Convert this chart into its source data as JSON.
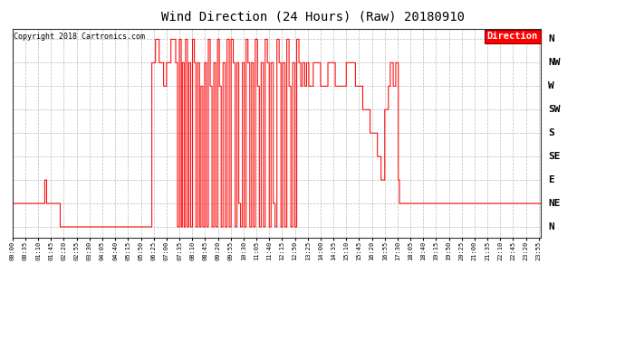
{
  "title": "Wind Direction (24 Hours) (Raw) 20180910",
  "copyright": "Copyright 2018 Cartronics.com",
  "legend_label": "Direction",
  "line_color": "#FF0000",
  "background_color": "#FFFFFF",
  "grid_color": "#AAAAAA",
  "y_labels": [
    "N",
    "NE",
    "E",
    "SE",
    "S",
    "SW",
    "W",
    "NW",
    "N"
  ],
  "y_values": [
    0,
    45,
    90,
    135,
    180,
    225,
    270,
    315,
    360
  ],
  "ylim_min": -20,
  "ylim_max": 380,
  "xlim_min": 0,
  "xlim_max": 1440,
  "x_tick_step_minutes": 35,
  "title_fontsize": 10,
  "copyright_fontsize": 6,
  "ylabel_fontsize": 8,
  "xtick_fontsize": 5,
  "segments": [
    {
      "s": 0,
      "e": 88,
      "v": 45
    },
    {
      "s": 88,
      "e": 93,
      "v": 90
    },
    {
      "s": 93,
      "e": 110,
      "v": 45
    },
    {
      "s": 110,
      "e": 130,
      "v": 45
    },
    {
      "s": 130,
      "e": 380,
      "v": 0
    },
    {
      "s": 380,
      "e": 390,
      "v": 315
    },
    {
      "s": 390,
      "e": 400,
      "v": 360
    },
    {
      "s": 400,
      "e": 412,
      "v": 315
    },
    {
      "s": 412,
      "e": 420,
      "v": 270
    },
    {
      "s": 420,
      "e": 432,
      "v": 315
    },
    {
      "s": 432,
      "e": 445,
      "v": 360
    },
    {
      "s": 445,
      "e": 450,
      "v": 315
    },
    {
      "s": 450,
      "e": 455,
      "v": 0
    },
    {
      "s": 455,
      "e": 460,
      "v": 360
    },
    {
      "s": 460,
      "e": 463,
      "v": 0
    },
    {
      "s": 463,
      "e": 468,
      "v": 315
    },
    {
      "s": 468,
      "e": 472,
      "v": 0
    },
    {
      "s": 472,
      "e": 477,
      "v": 360
    },
    {
      "s": 477,
      "e": 481,
      "v": 0
    },
    {
      "s": 481,
      "e": 486,
      "v": 315
    },
    {
      "s": 486,
      "e": 491,
      "v": 0
    },
    {
      "s": 491,
      "e": 496,
      "v": 360
    },
    {
      "s": 496,
      "e": 500,
      "v": 315
    },
    {
      "s": 500,
      "e": 505,
      "v": 0
    },
    {
      "s": 505,
      "e": 510,
      "v": 315
    },
    {
      "s": 510,
      "e": 514,
      "v": 0
    },
    {
      "s": 514,
      "e": 519,
      "v": 270
    },
    {
      "s": 519,
      "e": 524,
      "v": 0
    },
    {
      "s": 524,
      "e": 529,
      "v": 315
    },
    {
      "s": 529,
      "e": 534,
      "v": 0
    },
    {
      "s": 534,
      "e": 539,
      "v": 360
    },
    {
      "s": 539,
      "e": 544,
      "v": 270
    },
    {
      "s": 544,
      "e": 549,
      "v": 0
    },
    {
      "s": 549,
      "e": 554,
      "v": 315
    },
    {
      "s": 554,
      "e": 559,
      "v": 0
    },
    {
      "s": 559,
      "e": 564,
      "v": 360
    },
    {
      "s": 564,
      "e": 569,
      "v": 270
    },
    {
      "s": 569,
      "e": 574,
      "v": 0
    },
    {
      "s": 574,
      "e": 580,
      "v": 315
    },
    {
      "s": 580,
      "e": 585,
      "v": 0
    },
    {
      "s": 585,
      "e": 591,
      "v": 360
    },
    {
      "s": 591,
      "e": 596,
      "v": 0
    },
    {
      "s": 596,
      "e": 602,
      "v": 360
    },
    {
      "s": 602,
      "e": 607,
      "v": 315
    },
    {
      "s": 607,
      "e": 612,
      "v": 0
    },
    {
      "s": 612,
      "e": 617,
      "v": 315
    },
    {
      "s": 617,
      "e": 622,
      "v": 45
    },
    {
      "s": 622,
      "e": 627,
      "v": 0
    },
    {
      "s": 627,
      "e": 632,
      "v": 315
    },
    {
      "s": 632,
      "e": 637,
      "v": 0
    },
    {
      "s": 637,
      "e": 642,
      "v": 360
    },
    {
      "s": 642,
      "e": 647,
      "v": 315
    },
    {
      "s": 647,
      "e": 652,
      "v": 0
    },
    {
      "s": 652,
      "e": 657,
      "v": 315
    },
    {
      "s": 657,
      "e": 662,
      "v": 0
    },
    {
      "s": 662,
      "e": 668,
      "v": 360
    },
    {
      "s": 668,
      "e": 673,
      "v": 270
    },
    {
      "s": 673,
      "e": 678,
      "v": 0
    },
    {
      "s": 678,
      "e": 684,
      "v": 315
    },
    {
      "s": 684,
      "e": 689,
      "v": 0
    },
    {
      "s": 689,
      "e": 695,
      "v": 360
    },
    {
      "s": 695,
      "e": 700,
      "v": 315
    },
    {
      "s": 700,
      "e": 705,
      "v": 0
    },
    {
      "s": 705,
      "e": 711,
      "v": 315
    },
    {
      "s": 711,
      "e": 716,
      "v": 45
    },
    {
      "s": 716,
      "e": 721,
      "v": 0
    },
    {
      "s": 721,
      "e": 727,
      "v": 360
    },
    {
      "s": 727,
      "e": 732,
      "v": 315
    },
    {
      "s": 732,
      "e": 737,
      "v": 0
    },
    {
      "s": 737,
      "e": 743,
      "v": 315
    },
    {
      "s": 743,
      "e": 748,
      "v": 0
    },
    {
      "s": 748,
      "e": 754,
      "v": 360
    },
    {
      "s": 754,
      "e": 759,
      "v": 270
    },
    {
      "s": 759,
      "e": 764,
      "v": 0
    },
    {
      "s": 764,
      "e": 770,
      "v": 315
    },
    {
      "s": 770,
      "e": 775,
      "v": 0
    },
    {
      "s": 775,
      "e": 781,
      "v": 360
    },
    {
      "s": 781,
      "e": 786,
      "v": 315
    },
    {
      "s": 786,
      "e": 791,
      "v": 270
    },
    {
      "s": 791,
      "e": 797,
      "v": 315
    },
    {
      "s": 797,
      "e": 802,
      "v": 270
    },
    {
      "s": 802,
      "e": 808,
      "v": 315
    },
    {
      "s": 808,
      "e": 820,
      "v": 270
    },
    {
      "s": 820,
      "e": 840,
      "v": 315
    },
    {
      "s": 840,
      "e": 860,
      "v": 270
    },
    {
      "s": 860,
      "e": 880,
      "v": 315
    },
    {
      "s": 880,
      "e": 910,
      "v": 270
    },
    {
      "s": 910,
      "e": 935,
      "v": 315
    },
    {
      "s": 935,
      "e": 955,
      "v": 270
    },
    {
      "s": 955,
      "e": 975,
      "v": 225
    },
    {
      "s": 975,
      "e": 995,
      "v": 180
    },
    {
      "s": 995,
      "e": 1005,
      "v": 135
    },
    {
      "s": 1005,
      "e": 1015,
      "v": 90
    },
    {
      "s": 1015,
      "e": 1025,
      "v": 225
    },
    {
      "s": 1025,
      "e": 1030,
      "v": 270
    },
    {
      "s": 1030,
      "e": 1038,
      "v": 315
    },
    {
      "s": 1038,
      "e": 1045,
      "v": 270
    },
    {
      "s": 1045,
      "e": 1052,
      "v": 315
    },
    {
      "s": 1052,
      "e": 1055,
      "v": 90
    },
    {
      "s": 1055,
      "e": 1060,
      "v": 45
    },
    {
      "s": 1060,
      "e": 1440,
      "v": 45
    }
  ]
}
